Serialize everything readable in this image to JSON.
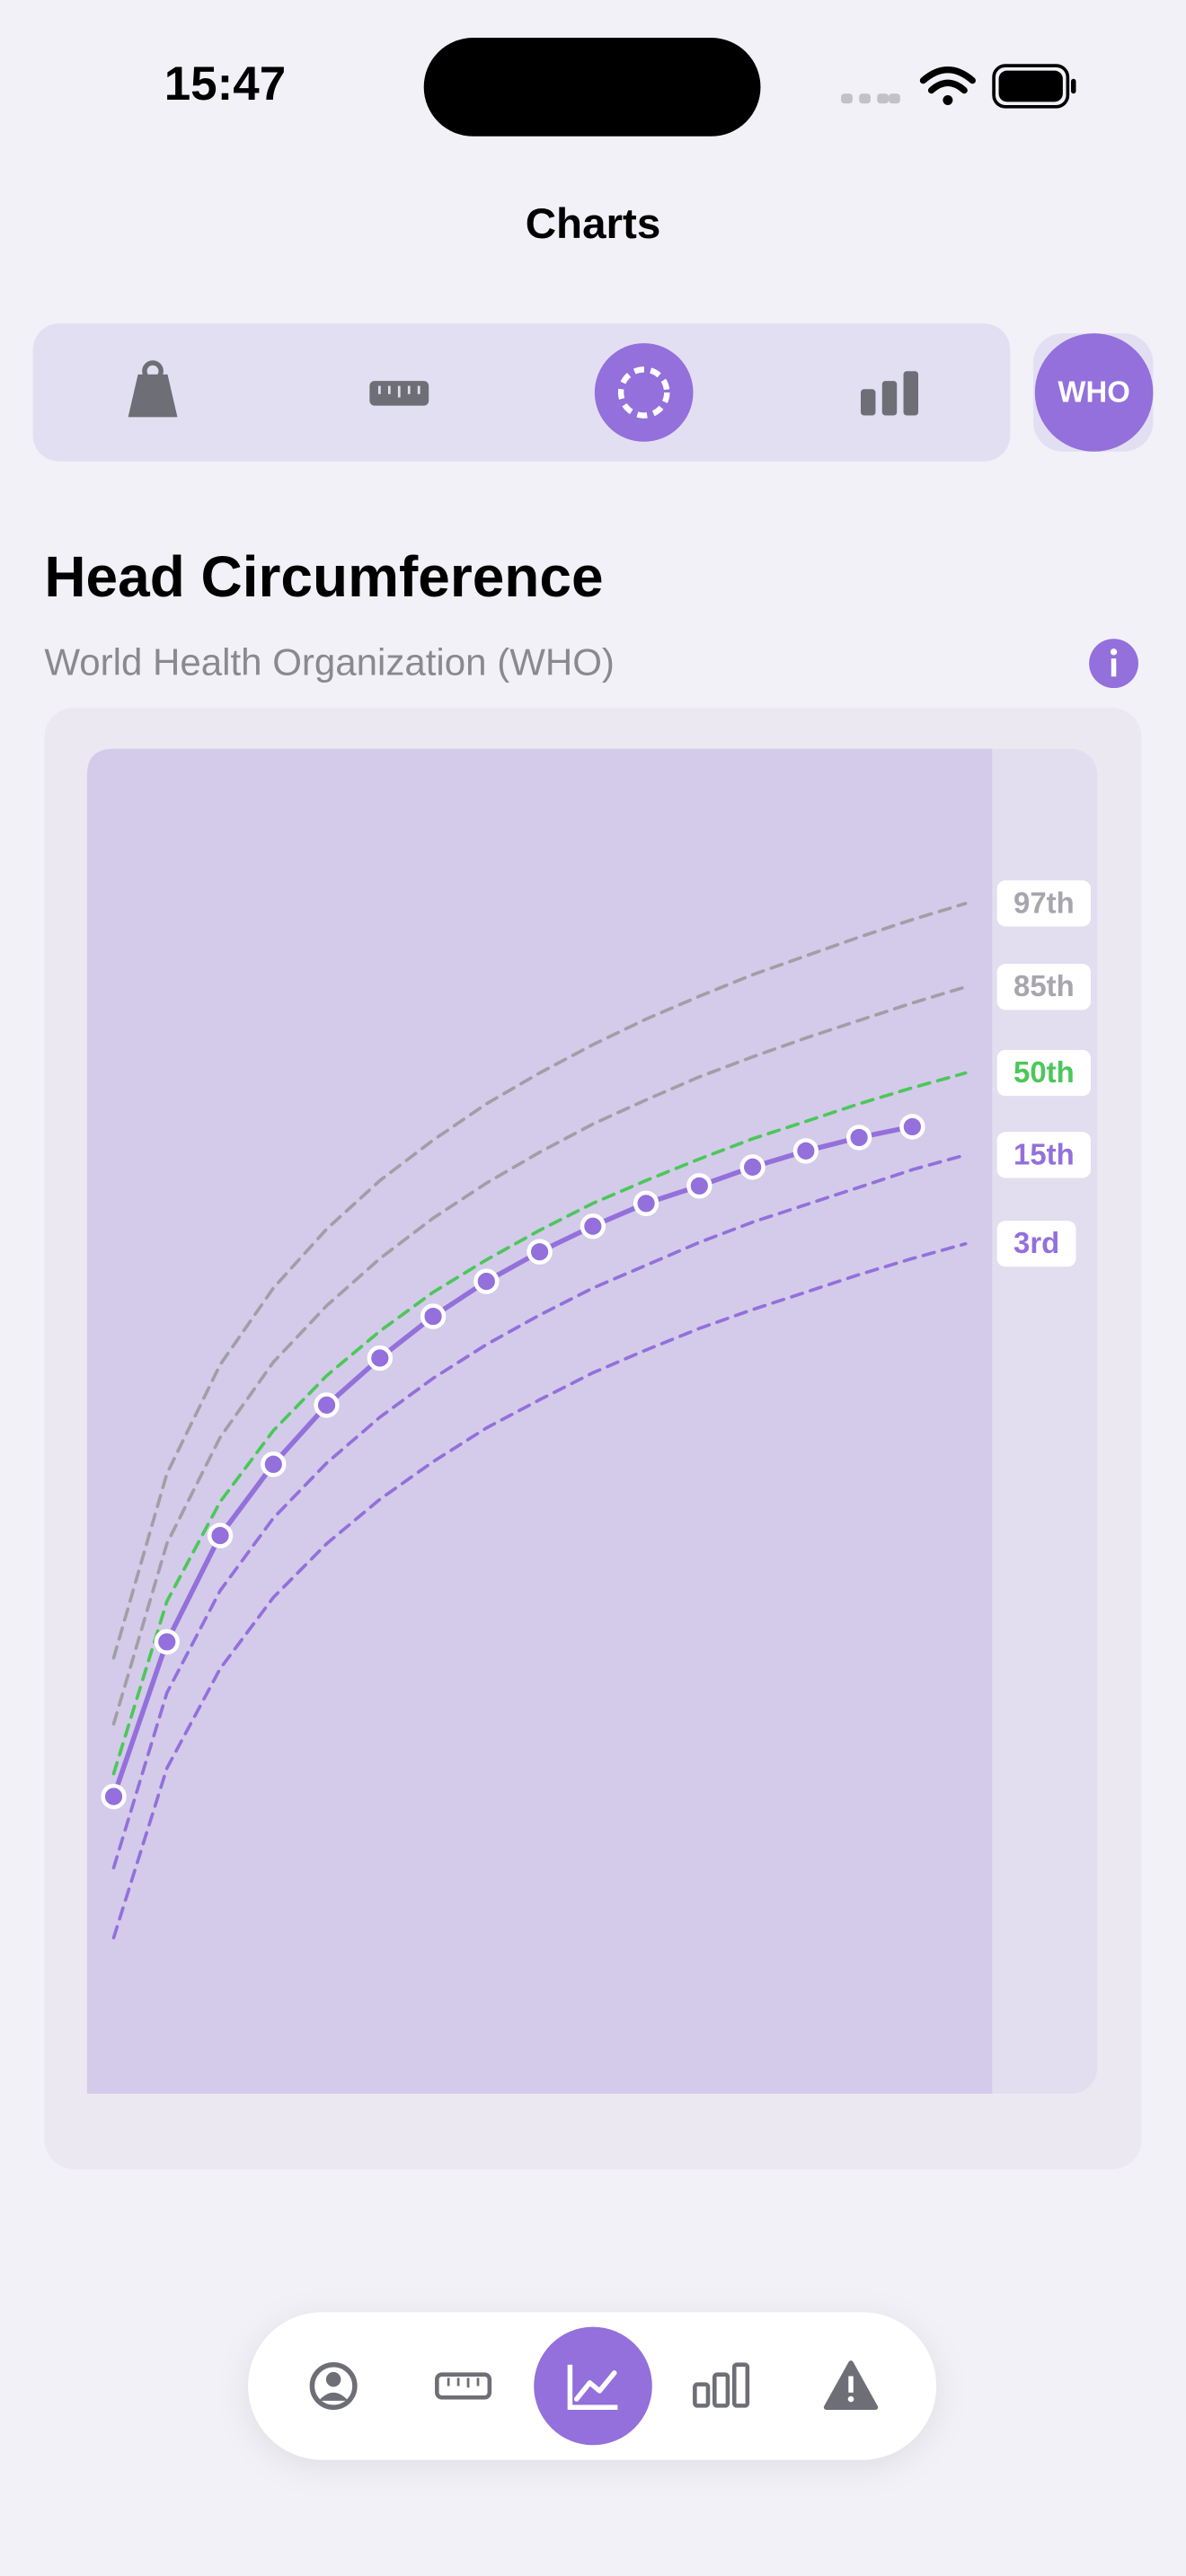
{
  "status_bar": {
    "time": "15:47"
  },
  "header": {
    "title": "Charts"
  },
  "toolbar": {
    "badge": "WHO"
  },
  "section": {
    "title": "Head Circumference",
    "subtitle": "World Health Organization (WHO)"
  },
  "chart_data": {
    "type": "line",
    "x": [
      0,
      1,
      2,
      3,
      4,
      5,
      6,
      7,
      8,
      9,
      10,
      11,
      12,
      13,
      14,
      15,
      16
    ],
    "xlim": [
      -0.5,
      16.5
    ],
    "ylim": [
      0,
      100
    ],
    "series": [
      {
        "name": "97th",
        "color": "#a19fa6",
        "style": "dashed",
        "values": [
          32.4,
          46.1,
          54.2,
          59.9,
          64.3,
          67.9,
          70.9,
          73.6,
          75.9,
          78.0,
          79.9,
          81.6,
          83.2,
          84.6,
          86.0,
          87.3,
          88.5
        ]
      },
      {
        "name": "85th",
        "color": "#a19fa6",
        "style": "dashed",
        "values": [
          27.5,
          40.9,
          48.8,
          54.4,
          58.6,
          62.1,
          65.1,
          67.7,
          70.0,
          72.1,
          73.9,
          75.6,
          77.1,
          78.5,
          79.8,
          81.1,
          82.3
        ]
      },
      {
        "name": "50th",
        "color": "#4cc75a",
        "style": "dashed",
        "values": [
          23.8,
          36.6,
          44.0,
          49.3,
          53.4,
          56.7,
          59.6,
          62.0,
          64.2,
          66.2,
          67.9,
          69.5,
          71.0,
          72.3,
          73.6,
          74.8,
          75.9
        ]
      },
      {
        "name": "15th",
        "color": "#9370db",
        "style": "dashed",
        "values": [
          16.8,
          29.8,
          37.4,
          42.8,
          46.9,
          50.3,
          53.2,
          55.7,
          57.9,
          59.9,
          61.6,
          63.3,
          64.8,
          66.1,
          67.4,
          68.7,
          69.8
        ]
      },
      {
        "name": "3rd",
        "color": "#9370db",
        "style": "dashed",
        "values": [
          11.6,
          24.2,
          31.6,
          36.9,
          40.9,
          44.2,
          47.0,
          49.5,
          51.6,
          53.6,
          55.3,
          56.9,
          58.3,
          59.6,
          60.9,
          62.1,
          63.2
        ]
      },
      {
        "color": "#9370db",
        "style": "solid",
        "markers": true,
        "values": [
          22.1,
          33.6,
          41.5,
          46.8,
          51.2,
          54.7,
          57.8,
          60.4,
          62.6,
          64.5,
          66.2,
          67.5,
          68.9,
          70.1,
          71.1,
          71.9,
          null
        ]
      }
    ]
  }
}
